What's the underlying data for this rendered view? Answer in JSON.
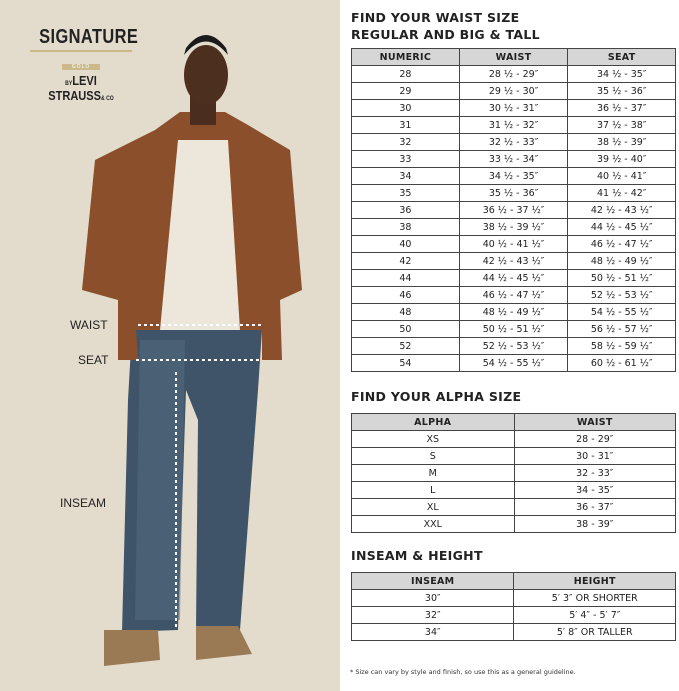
{
  "brand": {
    "line1": "SIGNATURE",
    "line2": "GOLD",
    "line3": "LEVI STRAUSS",
    "prefix": "BY",
    "suffix": "& CO"
  },
  "model_labels": {
    "waist": "WAIST",
    "seat": "SEAT",
    "inseam": "INSEAM"
  },
  "waist_section": {
    "title1": "FIND YOUR WAIST SIZE",
    "title2": "REGULAR AND BIG & TALL",
    "headers": [
      "NUMERIC",
      "WAIST",
      "SEAT"
    ],
    "rows": [
      [
        "28",
        "28 ½ - 29″",
        "34 ½ - 35″"
      ],
      [
        "29",
        "29 ½ - 30″",
        "35 ½ - 36″"
      ],
      [
        "30",
        "30 ½ - 31″",
        "36 ½ - 37″"
      ],
      [
        "31",
        "31 ½ - 32″",
        "37 ½ - 38″"
      ],
      [
        "32",
        "32 ½ - 33″",
        "38 ½ - 39″"
      ],
      [
        "33",
        "33 ½ - 34″",
        "39 ½ - 40″"
      ],
      [
        "34",
        "34 ½ - 35″",
        "40 ½ - 41″"
      ],
      [
        "35",
        "35 ½ - 36″",
        "41 ½ - 42″"
      ],
      [
        "36",
        "36 ½ - 37 ½″",
        "42 ½ - 43 ½″"
      ],
      [
        "38",
        "38 ½ - 39 ½″",
        "44 ½ - 45 ½″"
      ],
      [
        "40",
        "40 ½ - 41 ½″",
        "46 ½ - 47 ½″"
      ],
      [
        "42",
        "42 ½ - 43 ½″",
        "48 ½ - 49 ½″"
      ],
      [
        "44",
        "44 ½ - 45 ½″",
        "50 ½ - 51 ½″"
      ],
      [
        "46",
        "46 ½ - 47 ½″",
        "52 ½ - 53 ½″"
      ],
      [
        "48",
        "48 ½ - 49 ½″",
        "54 ½ - 55 ½″"
      ],
      [
        "50",
        "50 ½ - 51 ½″",
        "56 ½ - 57 ½″"
      ],
      [
        "52",
        "52 ½ - 53 ½″",
        "58 ½ - 59 ½″"
      ],
      [
        "54",
        "54 ½ - 55 ½″",
        "60 ½ - 61 ½″"
      ]
    ]
  },
  "alpha_section": {
    "title": "FIND YOUR ALPHA SIZE",
    "headers": [
      "ALPHA",
      "WAIST"
    ],
    "rows": [
      [
        "XS",
        "28 - 29″"
      ],
      [
        "S",
        "30 - 31″"
      ],
      [
        "M",
        "32 - 33″"
      ],
      [
        "L",
        "34 - 35″"
      ],
      [
        "XL",
        "36 - 37″"
      ],
      [
        "XXL",
        "38 - 39″"
      ]
    ]
  },
  "inseam_section": {
    "title": "INSEAM & HEIGHT",
    "headers": [
      "INSEAM",
      "HEIGHT"
    ],
    "rows": [
      [
        "30″",
        "5′ 3″ OR SHORTER"
      ],
      [
        "32″",
        "5′ 4″ - 5′ 7″"
      ],
      [
        "34″",
        "5′ 8″ OR TALLER"
      ]
    ]
  },
  "footnote": "* Size can vary by style and finish, so use this as a general guideline."
}
